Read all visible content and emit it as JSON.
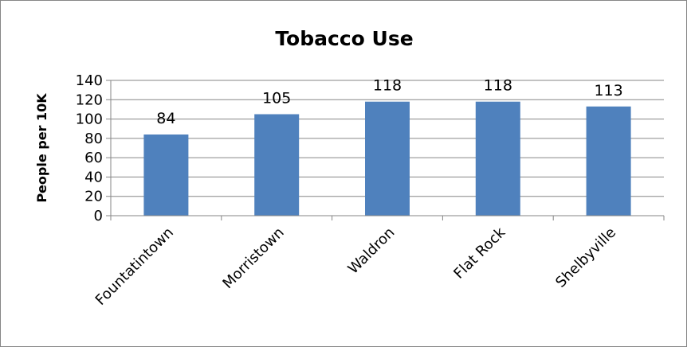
{
  "chart_data": {
    "type": "bar",
    "title": "Tobacco Use",
    "xlabel": "",
    "ylabel": "People per 10K",
    "categories": [
      "Fountatintown",
      "Morristown",
      "Waldron",
      "Flat Rock",
      "Shelbyville"
    ],
    "values": [
      84,
      105,
      118,
      118,
      113
    ],
    "ylim": [
      0,
      140
    ],
    "yticks": [
      0,
      20,
      40,
      60,
      80,
      100,
      120,
      140
    ],
    "grid": true,
    "legend": "none",
    "bar_color": "#4F81BD",
    "gridline_color": "#868686"
  }
}
